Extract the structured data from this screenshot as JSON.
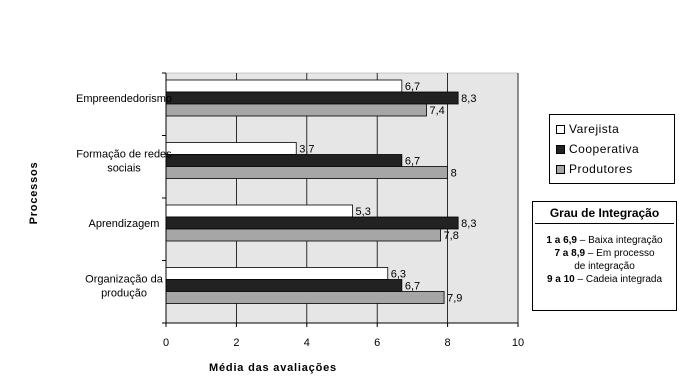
{
  "chart_data": {
    "type": "bar",
    "orientation": "horizontal",
    "categories": [
      [
        "Empreendedorismo"
      ],
      [
        "Formação de redes",
        "sociais"
      ],
      [
        "Aprendizagem"
      ],
      [
        "Organização da",
        "produção"
      ]
    ],
    "series": [
      {
        "name": "Varejista",
        "color": "#ffffff",
        "values": [
          6.7,
          3.7,
          5.3,
          6.3
        ]
      },
      {
        "name": "Cooperativa",
        "color": "#222222",
        "values": [
          8.3,
          6.7,
          8.3,
          6.7
        ]
      },
      {
        "name": "Produtores",
        "color": "#a6a6a6",
        "values": [
          7.4,
          8,
          7.8,
          7.9
        ]
      }
    ],
    "value_labels": [
      [
        "6,7",
        "3,7",
        "5,3",
        "6,3"
      ],
      [
        "8,3",
        "6,7",
        "8,3",
        "6,7"
      ],
      [
        "7,4",
        "8",
        "7,8",
        "7,9"
      ]
    ],
    "xlabel": "Média das avaliações",
    "ylabel": "Processos",
    "xlim": [
      0,
      10
    ],
    "xticks": [
      0,
      2,
      4,
      6,
      8,
      10
    ],
    "grid": "vertical",
    "plot_background": "#e6e6e6",
    "legend_position": "right"
  },
  "integration_box": {
    "title": "Grau de Integração",
    "lines": [
      {
        "range": "1 a 6,9",
        "text": " – Baixa integração"
      },
      {
        "range": "7 a 8,9",
        "text": " – Em processo"
      },
      {
        "range": "",
        "text": "de integração"
      },
      {
        "range": "9 a 10",
        "text": " – Cadeia integrada"
      }
    ]
  }
}
